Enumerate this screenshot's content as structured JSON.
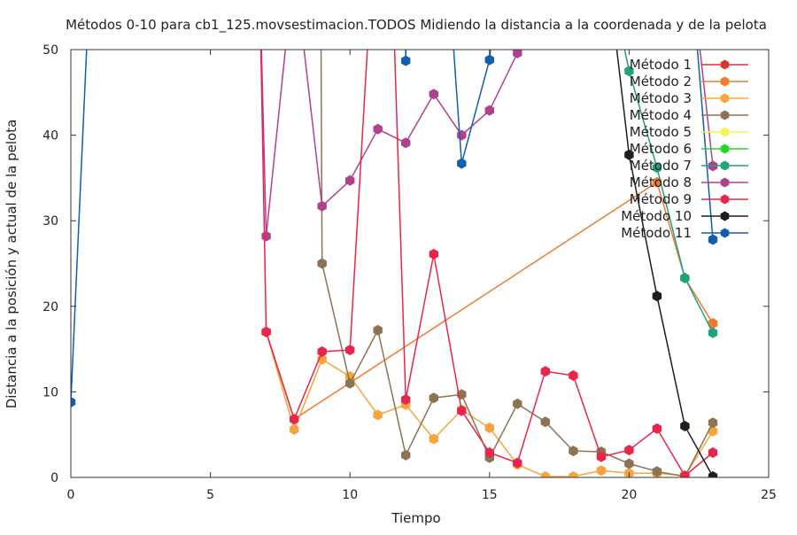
{
  "chart_data": {
    "type": "line",
    "title": "Métodos 0-10 para cb1_125.movsestimacion.TODOS Midiendo la distancia a la coordenada y de la pelota",
    "xlabel": "Tiempo",
    "ylabel": "Distancia a la posición y actual de la pelota",
    "xlim": [
      0,
      25
    ],
    "ylim": [
      0,
      50
    ],
    "x_ticks": [
      0,
      5,
      10,
      15,
      20,
      25
    ],
    "y_ticks": [
      0,
      10,
      20,
      30,
      40,
      50
    ],
    "x_tick_labels": [
      "0",
      "5",
      "10",
      "15",
      "20",
      "25"
    ],
    "y_tick_labels": [
      "0",
      "10",
      "20",
      "30",
      "40",
      "50"
    ],
    "grid": false,
    "legend_position": "top-right",
    "series": [
      {
        "name": "Método 1",
        "color": "#d23a2e",
        "points": [
          [
            23,
            18
          ]
        ]
      },
      {
        "name": "Método 2",
        "color": "#f27a30",
        "points": [
          [
            7,
            17
          ],
          [
            8,
            6.8
          ],
          [
            21,
            34.5
          ],
          [
            22,
            23.3
          ],
          [
            23,
            18
          ]
        ]
      },
      {
        "name": "Método 3",
        "color": "#f5a53b",
        "points": [
          [
            7,
            17
          ],
          [
            8,
            5.6
          ],
          [
            9,
            13.8
          ],
          [
            10,
            11.8
          ],
          [
            11,
            7.3
          ],
          [
            12,
            8.5
          ],
          [
            13,
            4.5
          ],
          [
            14,
            7.9
          ],
          [
            15,
            5.8
          ],
          [
            16,
            1.5
          ],
          [
            17,
            0.1
          ],
          [
            18,
            0.1
          ],
          [
            19,
            0.8
          ],
          [
            20,
            0.5
          ],
          [
            21,
            0.5
          ],
          [
            22,
            0.2
          ],
          [
            23,
            5.4
          ]
        ]
      },
      {
        "name": "Método 4",
        "color": "#8b7454",
        "points": [
          [
            8.95,
            60
          ],
          [
            9,
            25
          ],
          [
            10,
            11
          ],
          [
            11,
            17.2
          ],
          [
            12,
            2.6
          ],
          [
            13,
            9.3
          ],
          [
            14,
            9.7
          ],
          [
            15,
            2.3
          ],
          [
            16,
            8.6
          ],
          [
            17,
            6.5
          ],
          [
            18,
            3.1
          ],
          [
            19,
            3
          ],
          [
            20,
            1.6
          ],
          [
            21,
            0.7
          ],
          [
            22,
            0.1
          ],
          [
            23,
            6.4
          ]
        ]
      },
      {
        "name": "Método 5",
        "color": "#f2f25a",
        "points": []
      },
      {
        "name": "Método 6",
        "color": "#22d822",
        "points": []
      },
      {
        "name": "Método 7",
        "color": "#1ea37c",
        "points": [
          [
            19.2,
            60
          ],
          [
            20,
            47.5
          ],
          [
            21,
            36.2
          ],
          [
            22,
            23.3
          ],
          [
            23,
            16.9
          ]
        ]
      },
      {
        "name": "Método 8",
        "color": "#b0418e",
        "points": [
          [
            6.75,
            60
          ],
          [
            7,
            28.2
          ],
          [
            8,
            60
          ],
          [
            9,
            31.7
          ],
          [
            10,
            34.7
          ],
          [
            11,
            40.7
          ],
          [
            12,
            39.1
          ],
          [
            13,
            44.8
          ],
          [
            14,
            40
          ],
          [
            15,
            42.9
          ],
          [
            16,
            49.6
          ],
          [
            16.7,
            60
          ],
          [
            22.2,
            60
          ],
          [
            23,
            36.4
          ]
        ]
      },
      {
        "name": "Método 9",
        "color": "#e8254a",
        "points": [
          [
            6.75,
            60
          ],
          [
            7,
            17
          ],
          [
            8,
            6.8
          ],
          [
            9,
            14.7
          ],
          [
            10,
            14.9
          ],
          [
            10.8,
            60
          ],
          [
            11.5,
            60
          ],
          [
            12,
            9.1
          ],
          [
            13,
            26.1
          ],
          [
            14,
            7.8
          ],
          [
            15,
            2.9
          ],
          [
            16,
            1.7
          ],
          [
            17,
            12.4
          ],
          [
            18,
            11.9
          ],
          [
            19,
            2.4
          ],
          [
            20,
            3.2
          ],
          [
            21,
            5.7
          ],
          [
            22,
            0.2
          ],
          [
            23,
            2.9
          ]
        ]
      },
      {
        "name": "Método 10",
        "color": "#1e1e1e",
        "points": [
          [
            19.2,
            60
          ],
          [
            20,
            37.7
          ],
          [
            21,
            21.2
          ],
          [
            22,
            6
          ],
          [
            23,
            0.1
          ]
        ]
      },
      {
        "name": "Método 11",
        "color": "#125fae",
        "points": [
          [
            0,
            8.8
          ],
          [
            0.7,
            60
          ],
          [
            11.95,
            60
          ],
          [
            12,
            48.7
          ],
          [
            12.05,
            60
          ],
          [
            13.5,
            60
          ],
          [
            14,
            36.7
          ],
          [
            15,
            48.8
          ],
          [
            15.3,
            60
          ],
          [
            22.2,
            60
          ],
          [
            23,
            27.8
          ]
        ]
      }
    ]
  }
}
